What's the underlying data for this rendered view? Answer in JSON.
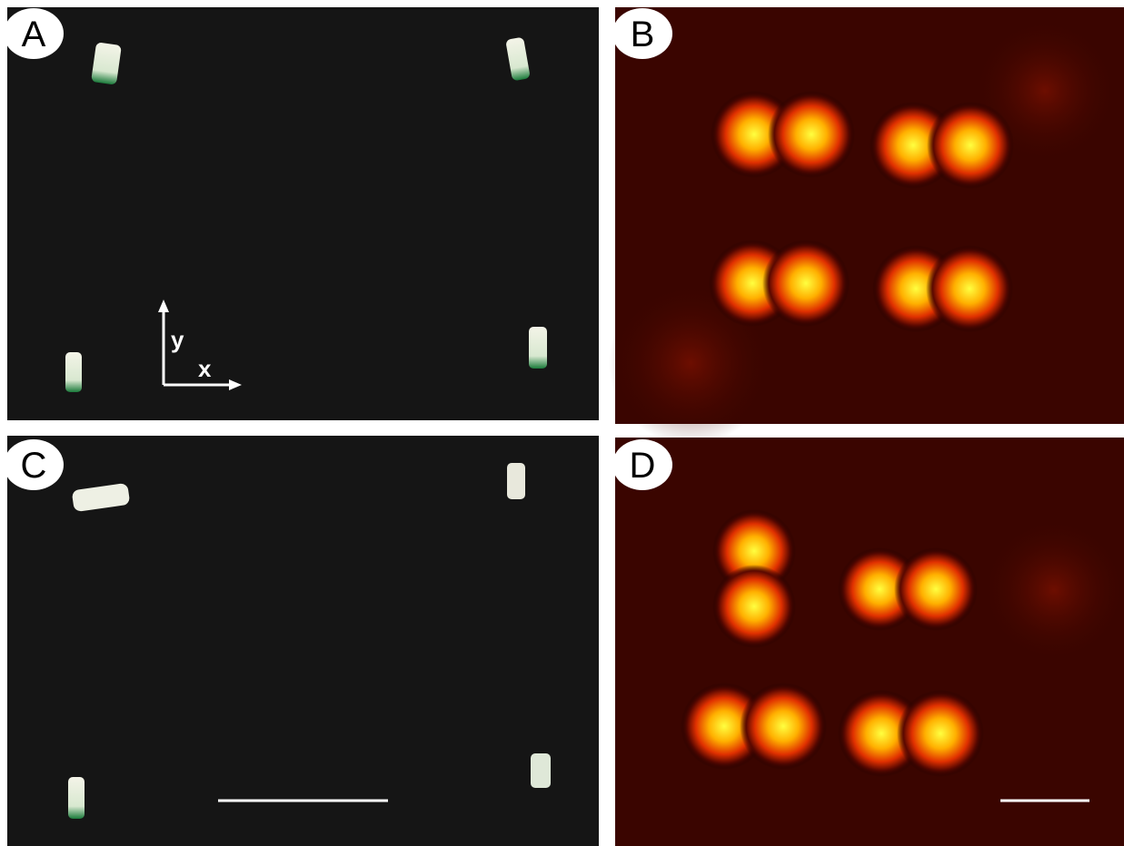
{
  "panels": [
    {
      "label": "A"
    },
    {
      "label": "B"
    },
    {
      "label": "C"
    },
    {
      "label": "D"
    }
  ],
  "axes": {
    "y_label": "y",
    "x_label": "x"
  }
}
